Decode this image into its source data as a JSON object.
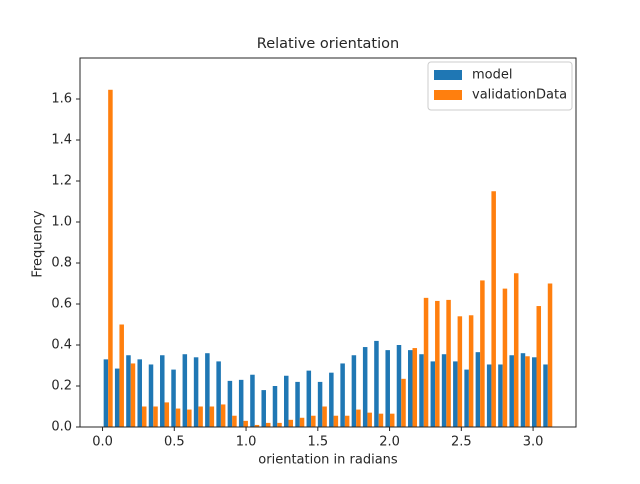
{
  "chart_data": {
    "type": "histogram",
    "title": "Relative orientation",
    "x_label": "orientation in radians",
    "y_label": "Frequency",
    "bins": [
      0,
      0.0785,
      0.1571,
      0.2356,
      0.3142,
      0.3927,
      0.4712,
      0.5498,
      0.6283,
      0.7069,
      0.7854,
      0.8639,
      0.9425,
      1.021,
      1.0996,
      1.1781,
      1.2566,
      1.3352,
      1.4137,
      1.4923,
      1.5708,
      1.6493,
      1.7279,
      1.8064,
      1.885,
      1.9635,
      2.042,
      2.1206,
      2.1991,
      2.2777,
      2.3562,
      2.4347,
      2.5133,
      2.5918,
      2.6704,
      2.7489,
      2.8274,
      2.906,
      2.9845,
      3.0631,
      3.1416
    ],
    "series": [
      {
        "name": "model",
        "color": "#1f77b4",
        "values": [
          0.33,
          0.285,
          0.35,
          0.33,
          0.305,
          0.35,
          0.28,
          0.355,
          0.34,
          0.36,
          0.32,
          0.225,
          0.23,
          0.255,
          0.18,
          0.2,
          0.25,
          0.22,
          0.275,
          0.22,
          0.265,
          0.31,
          0.35,
          0.39,
          0.42,
          0.375,
          0.4,
          0.375,
          0.355,
          0.32,
          0.355,
          0.32,
          0.28,
          0.365,
          0.305,
          0.305,
          0.35,
          0.36,
          0.34,
          0.305
        ]
      },
      {
        "name": "validationData",
        "color": "#ff7f0e",
        "values": [
          1.645,
          0.5,
          0.31,
          0.1,
          0.1,
          0.12,
          0.09,
          0.085,
          0.1,
          0.1,
          0.11,
          0.055,
          0.03,
          0.01,
          0.02,
          0.02,
          0.035,
          0.045,
          0.055,
          0.1,
          0.055,
          0.055,
          0.085,
          0.07,
          0.065,
          0.065,
          0.235,
          0.385,
          0.63,
          0.615,
          0.62,
          0.54,
          0.545,
          0.715,
          1.15,
          0.675,
          0.75,
          0.345,
          0.59,
          0.7
        ]
      }
    ],
    "xlim": [
      -0.157,
      3.299
    ],
    "ylim": [
      0,
      1.8
    ],
    "xticks": [
      {
        "value": 0,
        "label": "0.0"
      },
      0.5,
      {
        "value": 1,
        "label": "1.0"
      },
      1.5,
      {
        "value": 2,
        "label": "2.0"
      },
      2.5,
      {
        "value": 3,
        "label": "3.0"
      }
    ],
    "yticks": [
      {
        "value": 0,
        "label": "0.0"
      },
      0.2,
      0.4,
      0.6,
      0.8,
      {
        "value": 1,
        "label": "1.0"
      },
      1.2,
      1.4,
      1.6
    ],
    "legend": "upper right",
    "grid": false
  }
}
